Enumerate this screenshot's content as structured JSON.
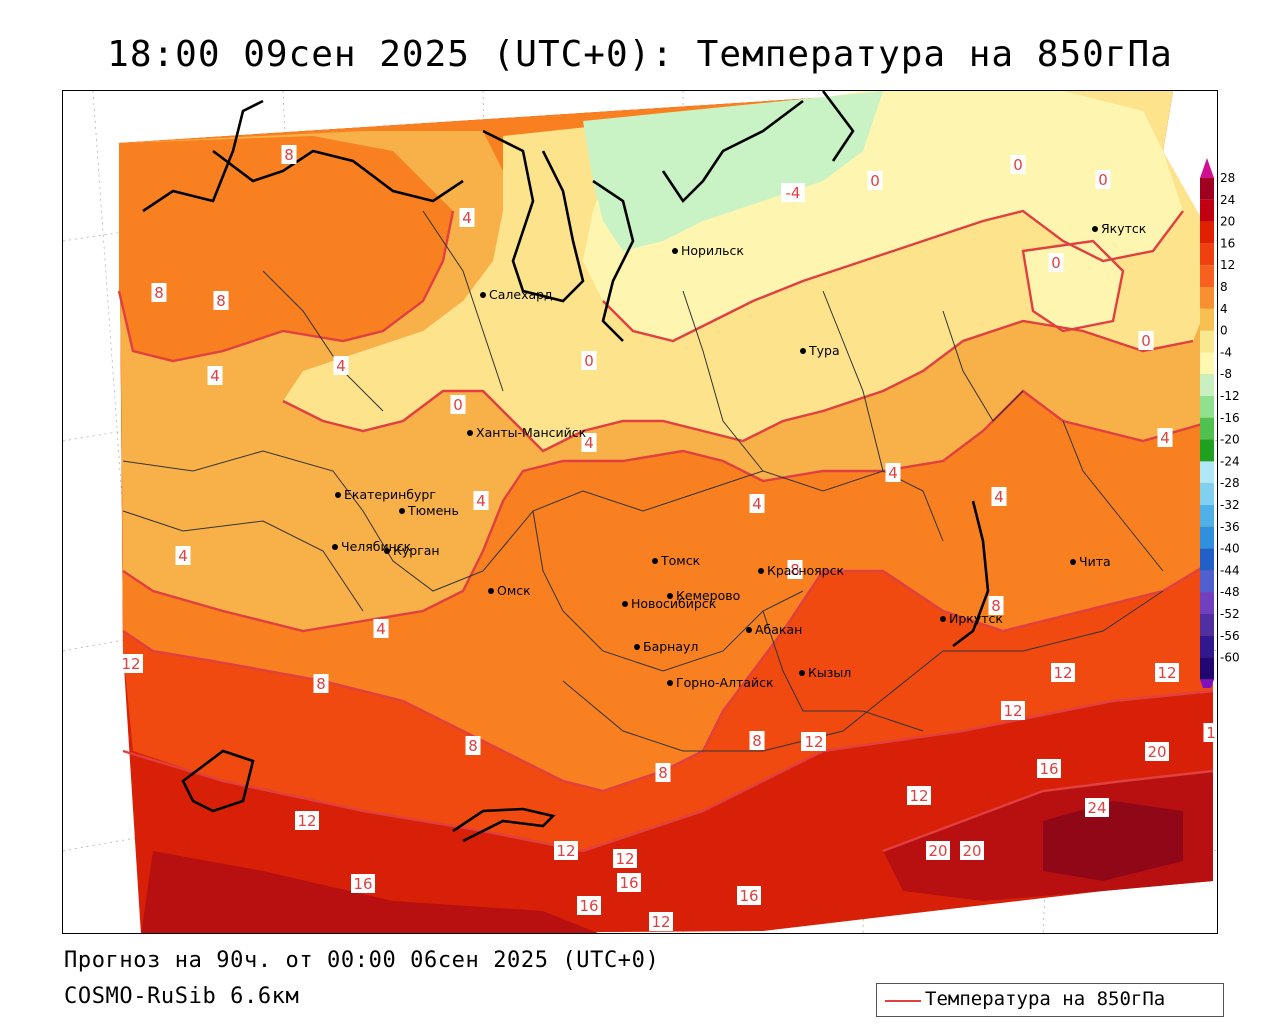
{
  "title": "18:00 09сен 2025 (UTC+0): Температура на 850гПа",
  "footer": {
    "forecast": "Прогноз на 90ч. от 00:00 06сен 2025 (UTC+0)",
    "model": "COSMO-RuSib 6.6км"
  },
  "legend": {
    "label": "Температура на 850гПа",
    "line_color": "#e04040"
  },
  "colorbar": {
    "ticks": [
      "28",
      "24",
      "20",
      "16",
      "12",
      "8",
      "4",
      "0",
      "-4",
      "-8",
      "-12",
      "-16",
      "-20",
      "-24",
      "-28",
      "-32",
      "-36",
      "-40",
      "-44",
      "-48",
      "-52",
      "-56",
      "-60"
    ],
    "colors": [
      "#a00020",
      "#c00010",
      "#e02000",
      "#f04010",
      "#f86020",
      "#f89030",
      "#f8c050",
      "#f8e890",
      "#fff8b0",
      "#c8f0c0",
      "#90e090",
      "#50c050",
      "#20a020",
      "#b0e8f8",
      "#80d0f0",
      "#50b0e8",
      "#3090e0",
      "#2060c8",
      "#5060d0",
      "#7040c0",
      "#5030a0",
      "#301890",
      "#200870"
    ],
    "top_color": "#d01090",
    "bottom_color": "#8010c0"
  },
  "cities": [
    {
      "name": "Салехард"
    },
    {
      "name": "Норильск"
    },
    {
      "name": "Якутск"
    },
    {
      "name": "Тура"
    },
    {
      "name": "Ханты-Мансийск"
    },
    {
      "name": "Екатеринбург"
    },
    {
      "name": "Тюмень"
    },
    {
      "name": "Челябинск"
    },
    {
      "name": "Курган"
    },
    {
      "name": "Омск"
    },
    {
      "name": "Новосибирск"
    },
    {
      "name": "Томск"
    },
    {
      "name": "Кемерово"
    },
    {
      "name": "Красноярск"
    },
    {
      "name": "Барнаул"
    },
    {
      "name": "Абакан"
    },
    {
      "name": "Горно-Алтайск"
    },
    {
      "name": "Кызыл"
    },
    {
      "name": "Иркутск"
    },
    {
      "name": "Чита"
    }
  ],
  "isotherm_labels": [
    "8",
    "4",
    "-4",
    "0",
    "0",
    "0",
    "0",
    "0",
    "0",
    "8",
    "8",
    "4",
    "4",
    "0",
    "4",
    "4",
    "4",
    "4",
    "4",
    "4",
    "4",
    "4",
    "8",
    "8",
    "12",
    "8",
    "8",
    "8",
    "12",
    "12",
    "12",
    "12",
    "8",
    "12",
    "16",
    "20",
    "24",
    "20",
    "12",
    "16",
    "20",
    "16",
    "12",
    "12",
    "12",
    "16",
    "16",
    "16",
    "12",
    "1"
  ],
  "colors": {
    "c16": "#d82008",
    "c12": "#f04a10",
    "c8": "#f88020",
    "c4": "#f8b048",
    "c0": "#fde48c",
    "cm4": "#fef6b0",
    "cm8": "#c9f3c4",
    "c20": "#b81010",
    "c24": "#900818",
    "contour": "#e04040",
    "coast": "#000000",
    "border": "#333333"
  }
}
